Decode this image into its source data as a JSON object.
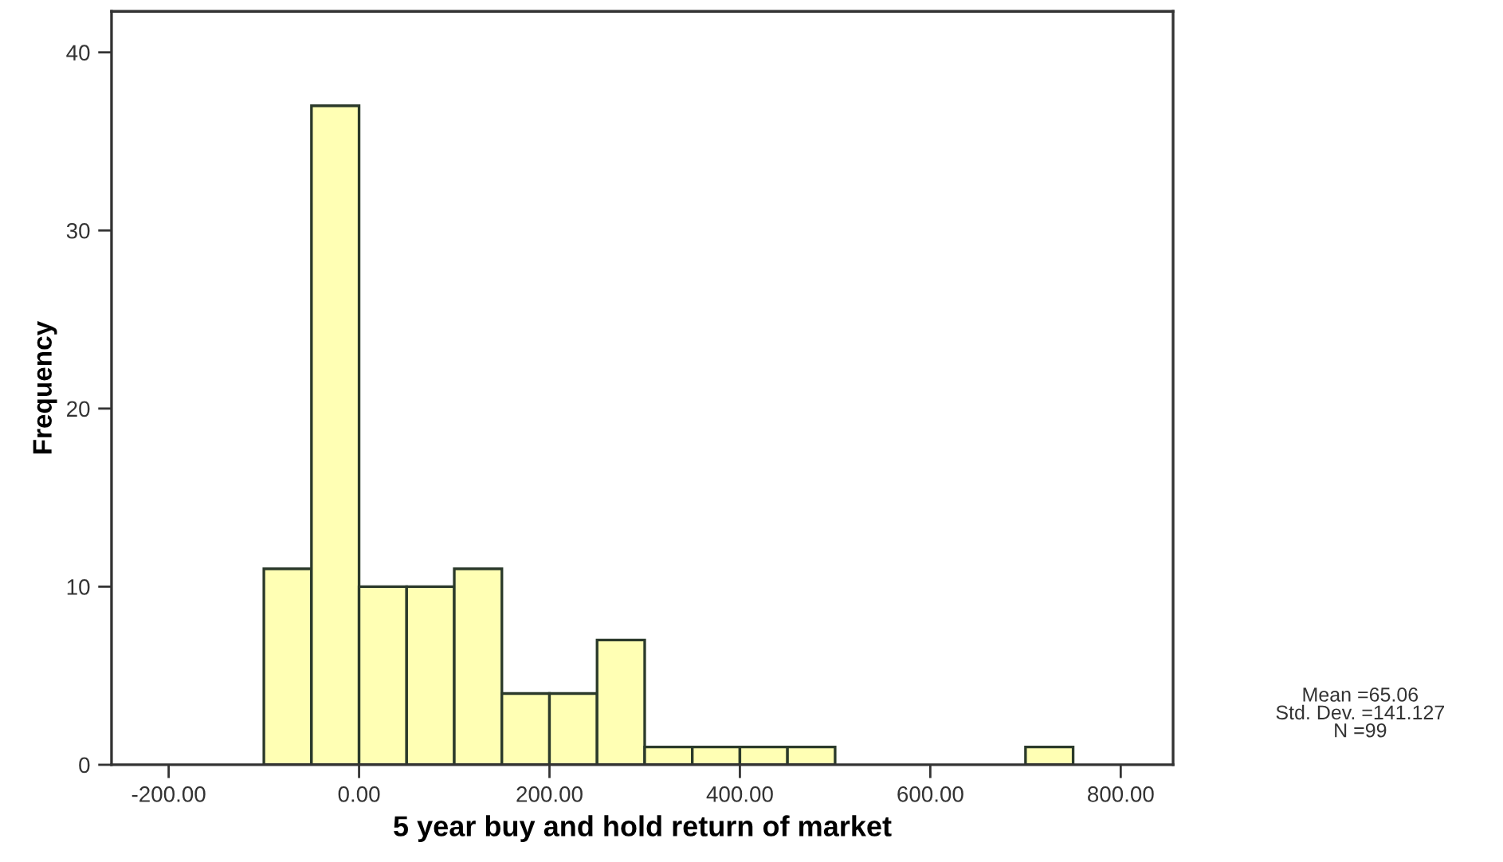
{
  "chart_data": {
    "type": "histogram",
    "xlabel": "5 year buy and hold return of market",
    "ylabel": "Frequency",
    "bins": [
      -100,
      -50,
      0,
      50,
      100,
      150,
      200,
      250,
      300,
      350,
      400,
      450,
      500,
      550,
      600,
      650,
      700,
      750
    ],
    "values": [
      11,
      37,
      10,
      10,
      11,
      4,
      4,
      7,
      1,
      1,
      1,
      1,
      0,
      0,
      0,
      0,
      1
    ],
    "color": "#ffffb4",
    "xlim": [
      -260,
      855
    ],
    "ylim": [
      0,
      42.3
    ],
    "xticks": [
      {
        "value": -200,
        "label": "-200.00"
      },
      {
        "value": 0,
        "label": "0.00"
      },
      {
        "value": 200,
        "label": "200.00"
      },
      {
        "value": 400,
        "label": "400.00"
      },
      {
        "value": 600,
        "label": "600.00"
      },
      {
        "value": 800,
        "label": "800.00"
      }
    ],
    "yticks": [
      0,
      10,
      20,
      30,
      40
    ],
    "grid": false,
    "annotations": [
      "Mean =65.06\nStd. Dev. =141.127\nN =99"
    ]
  }
}
